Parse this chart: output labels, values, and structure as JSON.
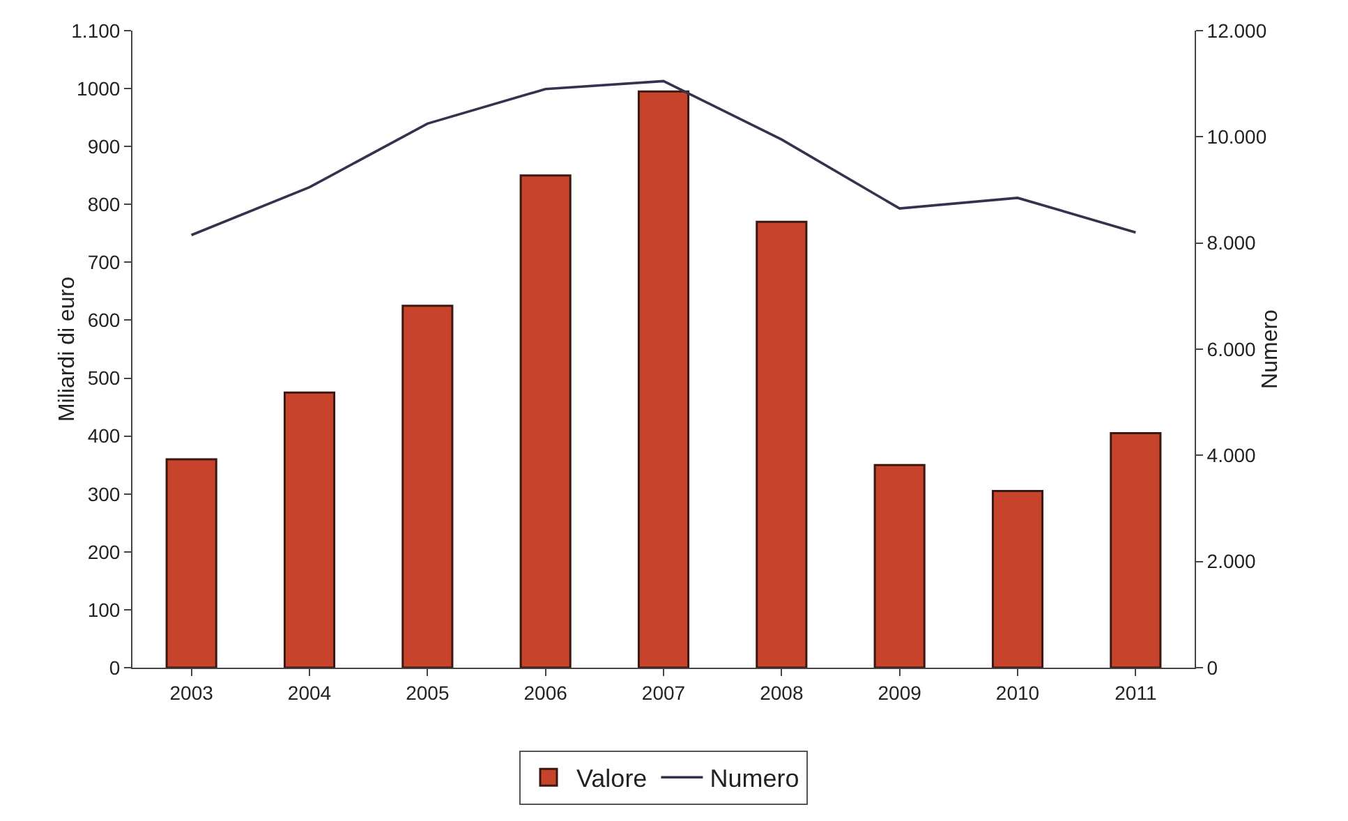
{
  "chart_data": {
    "type": "bar",
    "categories": [
      "2003",
      "2004",
      "2005",
      "2006",
      "2007",
      "2008",
      "2009",
      "2010",
      "2011"
    ],
    "series": [
      {
        "name": "Valore",
        "color": "#c8432b",
        "values": [
          360,
          475,
          625,
          850,
          995,
          770,
          350,
          305,
          405
        ]
      },
      {
        "name": "Numero",
        "type": "line",
        "axis": "y2",
        "color": "#33334d",
        "values": [
          8150,
          9050,
          10250,
          10900,
          11050,
          9950,
          8650,
          8850,
          8200
        ]
      }
    ],
    "ylabel": "Miliardi di euro",
    "y2label": "Numero",
    "ylim": [
      0,
      1100
    ],
    "yticks": [
      0,
      100,
      200,
      300,
      400,
      500,
      600,
      700,
      800,
      900,
      1000,
      {
        "value": 1100,
        "label": "1.100"
      }
    ],
    "y2lim": [
      0,
      12000
    ],
    "y2ticks": [
      0,
      {
        "value": 2000,
        "label": "2.000"
      },
      {
        "value": 4000,
        "label": "4.000"
      },
      {
        "value": 6000,
        "label": "6.000"
      },
      {
        "value": 8000,
        "label": "8.000"
      },
      {
        "value": 10000,
        "label": "10.000"
      },
      {
        "value": 12000,
        "label": "12.000"
      }
    ],
    "grid": false,
    "legend": "bottom",
    "marker": "none",
    "line_style": "solid"
  }
}
